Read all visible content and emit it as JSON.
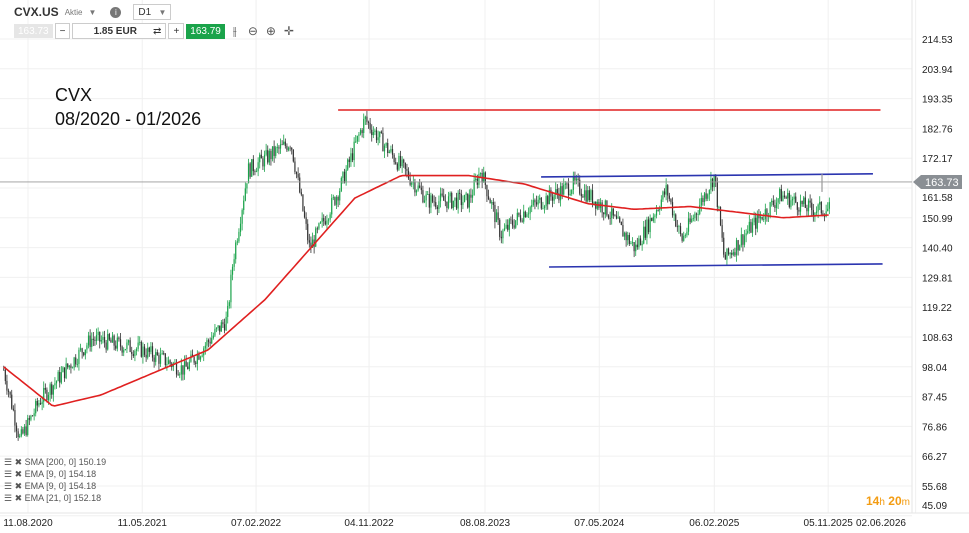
{
  "header": {
    "symbol": "CVX.US",
    "type": "Aktie",
    "timeframe": "D1",
    "bid": "163.73",
    "volume": "1.85 EUR",
    "ask": "163.79"
  },
  "annotation": {
    "line1": "CVX",
    "line2": "08/2020 - 01/2026"
  },
  "indicators": [
    "SMA [200, 0] 150.19",
    "EMA [9, 0] 154.18",
    "EMA [9, 0] 154.18",
    "EMA [21, 0] 152.18"
  ],
  "timer": {
    "hours": "14",
    "h": "h",
    "minutes": "20",
    "m": "m"
  },
  "colors": {
    "up": "#1aa34a",
    "down": "#333333",
    "sma": "#e02020",
    "resistance": "#e02020",
    "channel": "#2b35b0",
    "price_label": "#8a8f94"
  },
  "chart_data": {
    "type": "candlestick",
    "y_ticks": [
      "214.53",
      "203.94",
      "193.35",
      "182.76",
      "172.17",
      "161.58",
      "150.99",
      "140.40",
      "129.81",
      "119.22",
      "108.63",
      "98.04",
      "87.45",
      "76.86",
      "66.27",
      "55.68",
      "45.09"
    ],
    "ylim": [
      45.09,
      214.53
    ],
    "x_ticks": [
      "11.08.2020",
      "11.05.2021",
      "07.02.2022",
      "04.11.2022",
      "08.08.2023",
      "07.05.2024",
      "06.02.2025",
      "05.11.2025",
      "02.06.2026"
    ],
    "close_path": [
      [
        "2020-06-14",
        97
      ],
      [
        "2020-07-23",
        72
      ],
      [
        "2020-09-08",
        86
      ],
      [
        "2021-01-10",
        108
      ],
      [
        "2021-05-11",
        104
      ],
      [
        "2021-08-20",
        97
      ],
      [
        "2021-11-30",
        115
      ],
      [
        "2021-12-14",
        136
      ],
      [
        "2022-01-19",
        168
      ],
      [
        "2022-05-01",
        178
      ],
      [
        "2022-06-15",
        140
      ],
      [
        "2022-08-25",
        161
      ],
      [
        "2022-10-25",
        186
      ],
      [
        "2022-12-20",
        175
      ],
      [
        "2023-03-25",
        157
      ],
      [
        "2023-06-30",
        157
      ],
      [
        "2023-07-29",
        168
      ],
      [
        "2023-09-15",
        145
      ],
      [
        "2023-11-15",
        154
      ],
      [
        "2024-03-08",
        163
      ],
      [
        "2024-05-24",
        154
      ],
      [
        "2024-08-01",
        140
      ],
      [
        "2024-10-15",
        161
      ],
      [
        "2024-11-20",
        143
      ],
      [
        "2025-02-06",
        166
      ],
      [
        "2025-03-02",
        136
      ],
      [
        "2025-05-01",
        147
      ],
      [
        "2025-07-15",
        159
      ],
      [
        "2025-09-25",
        154
      ],
      [
        "2025-11-10",
        154
      ]
    ],
    "sma200": [
      [
        "2020-06-14",
        98
      ],
      [
        "2020-10-10",
        84
      ],
      [
        "2021-02-01",
        88
      ],
      [
        "2021-10-15",
        104
      ],
      [
        "2022-03-01",
        122
      ],
      [
        "2022-10-01",
        158
      ],
      [
        "2023-01-20",
        166
      ],
      [
        "2023-06-30",
        166
      ],
      [
        "2023-11-10",
        163
      ],
      [
        "2024-04-10",
        156
      ],
      [
        "2024-07-30",
        154
      ],
      [
        "2024-12-10",
        155
      ],
      [
        "2025-04-01",
        153
      ],
      [
        "2025-07-20",
        151
      ],
      [
        "2025-11-10",
        152
      ]
    ],
    "last_price": "163.73",
    "lines": [
      {
        "kind": "resistance",
        "from": [
          "2022-08-22",
          189.3
        ],
        "to": [
          "2026-03-10",
          189.3
        ]
      },
      {
        "kind": "channel-upper",
        "from": [
          "2023-12-20",
          165.5
        ],
        "to": [
          "2026-02-20",
          166.6
        ]
      },
      {
        "kind": "channel-lower",
        "from": [
          "2024-01-08",
          133.5
        ],
        "to": [
          "2026-03-15",
          134.6
        ]
      }
    ]
  }
}
